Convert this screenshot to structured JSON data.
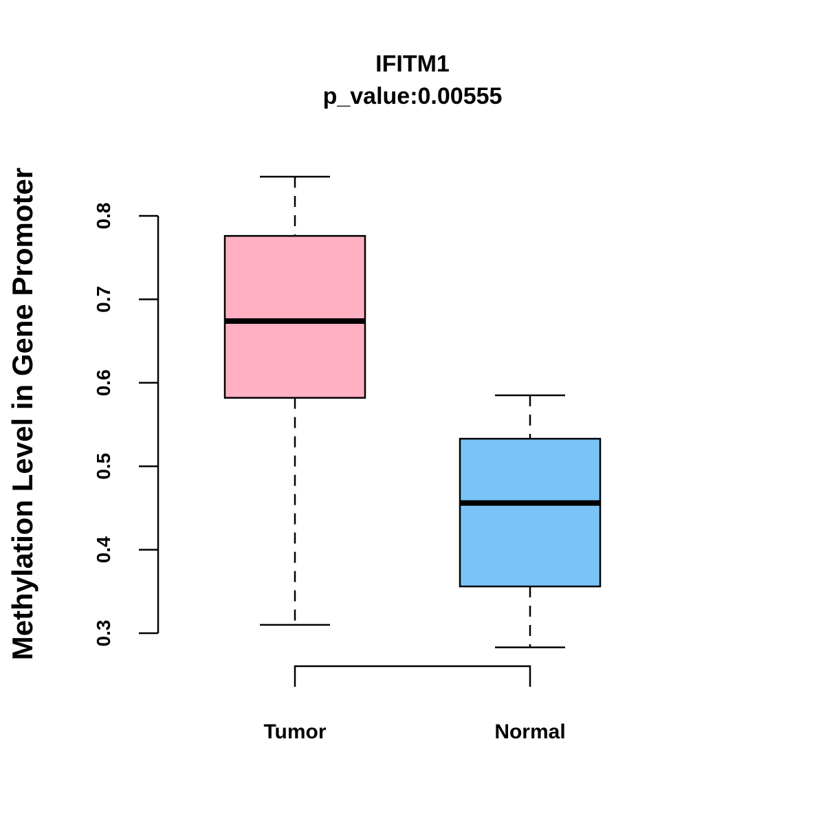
{
  "chart_data": {
    "type": "boxplot",
    "title": "IFITM1",
    "subtitle": "p_value:0.00555",
    "xlabel": "",
    "ylabel": "Methylation Level in Gene Promoter",
    "ylim": [
      0.3,
      0.8
    ],
    "yticks": [
      0.3,
      0.4,
      0.5,
      0.6,
      0.7,
      0.8
    ],
    "ytick_labels": [
      "0.3",
      "0.4",
      "0.5",
      "0.6",
      "0.7",
      "0.8"
    ],
    "grid": false,
    "categories": [
      "Tumor",
      "Normal"
    ],
    "boxes": [
      {
        "name": "Tumor",
        "whisker_low": 0.31,
        "q1": 0.582,
        "median": 0.674,
        "q3": 0.776,
        "whisker_high": 0.847,
        "color": "#FFB0C2"
      },
      {
        "name": "Normal",
        "whisker_low": 0.283,
        "q1": 0.356,
        "median": 0.456,
        "q3": 0.533,
        "whisker_high": 0.585,
        "color": "#7AC3F9"
      }
    ],
    "annotation": "bracket connecting Tumor and Normal"
  }
}
